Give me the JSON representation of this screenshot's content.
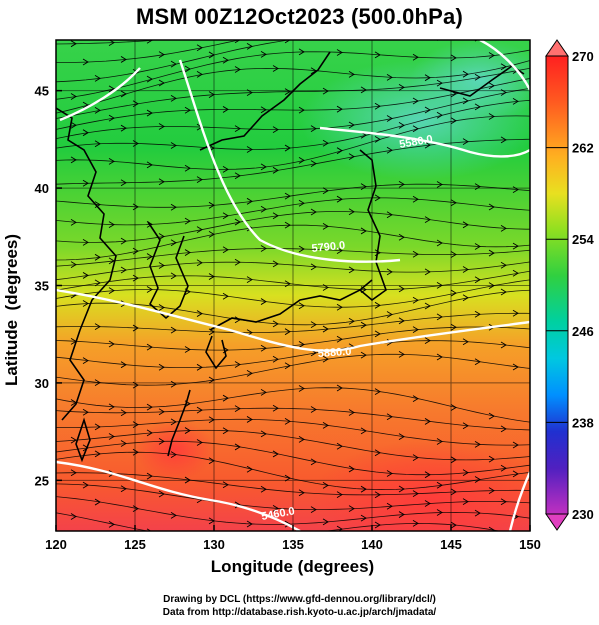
{
  "title": "MSM 00Z12Oct2023 (500.0hPa)",
  "credits": {
    "line1": "Drawing by DCL (https://www.gfd-dennou.org/library/dcl/)",
    "line2": "Data from http://database.rish.kyoto-u.ac.jp/arch/jmadata/"
  },
  "map": {
    "xlabel": "Longitude (degrees)",
    "ylabel": "Latitude  (degrees)",
    "lon_range": [
      120,
      150
    ],
    "lat_range": [
      22.4,
      47.6
    ],
    "lon_ticks": [
      "120",
      "125",
      "130",
      "135",
      "140",
      "145",
      "150"
    ],
    "lat_ticks": [
      "25",
      "30",
      "35",
      "40",
      "45"
    ],
    "grid": true,
    "field": "temperature (K) shaded, geopotential height contours, wind streamlines"
  },
  "colorbar": {
    "range": [
      230,
      270
    ],
    "tick_labels": [
      "270",
      "262",
      "254",
      "246",
      "238",
      "230"
    ],
    "extend": "both",
    "colors": [
      "#e040c0",
      "#8020c0",
      "#2030c0",
      "#0080ff",
      "#00c0e0",
      "#00d0a0",
      "#30d040",
      "#a0e020",
      "#e0e020",
      "#ffb020",
      "#ff6020",
      "#ff3030",
      "#ff8080"
    ]
  },
  "contours": [
    {
      "label": "5880.0"
    },
    {
      "label": "5790.0"
    },
    {
      "label": "5580.0"
    },
    {
      "label": "5460.0"
    }
  ]
}
